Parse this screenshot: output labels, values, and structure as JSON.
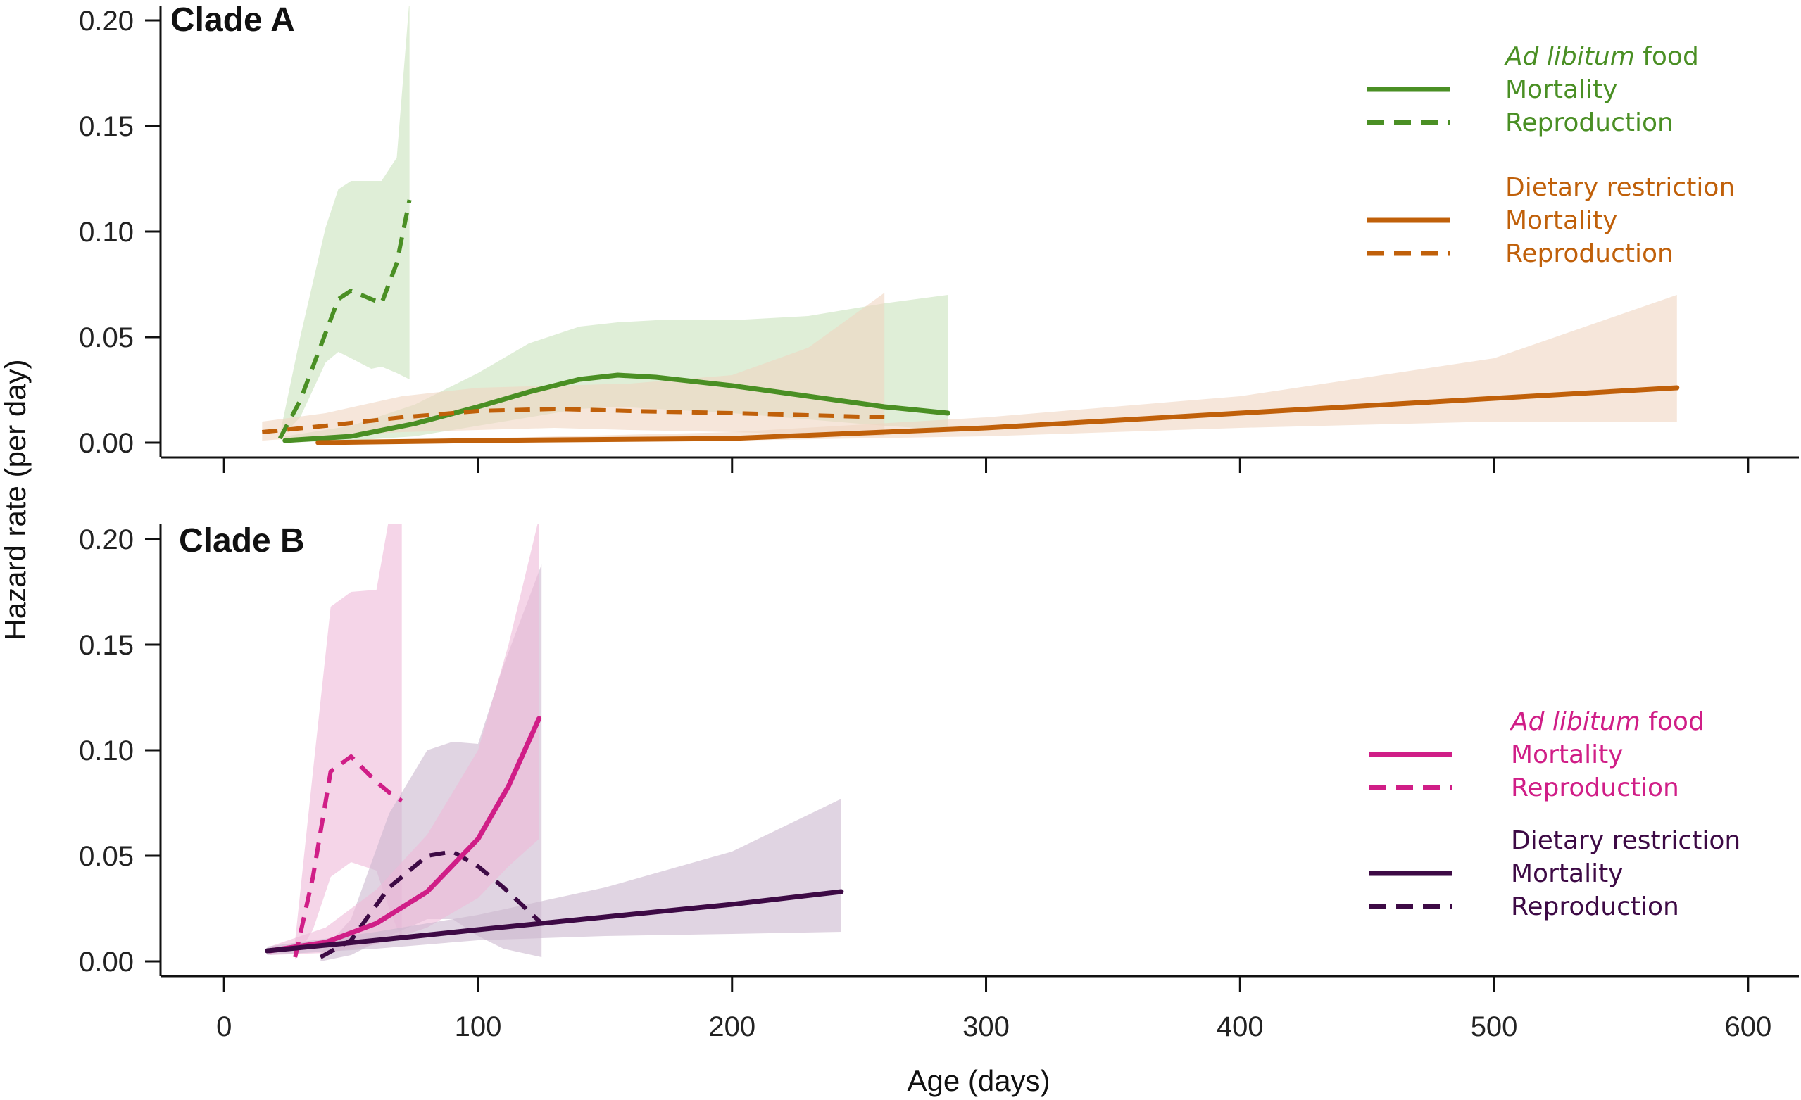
{
  "figure": {
    "ylabel": "Hazard rate (per day)",
    "xlabel": "Age (days)",
    "colors": {
      "A_adlib": "#4a8f24",
      "A_dr": "#c0600a",
      "B_adlib": "#d01e87",
      "B_dr": "#3d0a45",
      "A_adlib_band": "#c9e3bd",
      "A_dr_band": "#f0d6c2",
      "B_adlib_band": "#efb9d9",
      "B_dr_band": "#cbb7cf",
      "axis": "#111111"
    }
  },
  "chart_data": [
    {
      "type": "line",
      "panel": "A",
      "title": "Clade A",
      "xlabel": "Age (days)",
      "ylabel": "Hazard rate (per day)",
      "xlim": [
        -25,
        620
      ],
      "ylim": [
        -0.007,
        0.207
      ],
      "xticks": [
        0,
        100,
        200,
        300,
        400,
        500,
        600
      ],
      "xtick_labels": [
        "0",
        "100",
        "200",
        "300",
        "400",
        "500",
        "600"
      ],
      "yticks": [
        0.0,
        0.05,
        0.1,
        0.15,
        0.2
      ],
      "ytick_labels": [
        "0.00",
        "0.05",
        "0.10",
        "0.15",
        "0.20"
      ],
      "legend": {
        "position": "top-right",
        "groups": [
          {
            "italic": "Ad libitum",
            "heading": " food",
            "color": "A_adlib",
            "entries": [
              {
                "label": "Mortality",
                "style": "solid"
              },
              {
                "label": "Reproduction",
                "style": "dashed"
              }
            ]
          },
          {
            "italic": "",
            "heading": "Dietary restriction",
            "color": "A_dr",
            "entries": [
              {
                "label": "Mortality",
                "style": "solid"
              },
              {
                "label": "Reproduction",
                "style": "dashed"
              }
            ]
          }
        ]
      },
      "series": [
        {
          "name": "Ad libitum food - Reproduction",
          "color": "A_adlib",
          "band_color": "A_adlib_band",
          "style": "dashed",
          "x": [
            22,
            30,
            40,
            45,
            50,
            58,
            62,
            68,
            73
          ],
          "y": [
            0.002,
            0.02,
            0.052,
            0.068,
            0.072,
            0.068,
            0.066,
            0.085,
            0.115
          ],
          "lower": [
            0.002,
            0.012,
            0.038,
            0.043,
            0.04,
            0.035,
            0.036,
            0.033,
            0.03
          ],
          "upper": [
            0.004,
            0.05,
            0.102,
            0.12,
            0.124,
            0.124,
            0.124,
            0.135,
            0.21
          ]
        },
        {
          "name": "Ad libitum food - Mortality",
          "color": "A_adlib",
          "band_color": "A_adlib_band",
          "style": "solid",
          "x": [
            24,
            50,
            75,
            100,
            120,
            140,
            155,
            170,
            200,
            230,
            260,
            285
          ],
          "y": [
            0.001,
            0.003,
            0.009,
            0.017,
            0.024,
            0.03,
            0.032,
            0.031,
            0.027,
            0.022,
            0.017,
            0.014
          ],
          "lower": [
            0.0,
            0.001,
            0.003,
            0.008,
            0.012,
            0.016,
            0.017,
            0.016,
            0.014,
            0.011,
            0.008,
            0.006
          ],
          "upper": [
            0.003,
            0.008,
            0.018,
            0.033,
            0.047,
            0.055,
            0.057,
            0.058,
            0.058,
            0.06,
            0.066,
            0.07
          ]
        },
        {
          "name": "Dietary restriction - Reproduction",
          "color": "A_dr",
          "band_color": "A_dr_band",
          "style": "dashed",
          "x": [
            15,
            40,
            70,
            100,
            130,
            160,
            200,
            230,
            260
          ],
          "y": [
            0.005,
            0.008,
            0.012,
            0.015,
            0.016,
            0.015,
            0.014,
            0.013,
            0.012
          ],
          "lower": [
            0.001,
            0.003,
            0.005,
            0.006,
            0.007,
            0.006,
            0.005,
            0.004,
            0.003
          ],
          "upper": [
            0.01,
            0.014,
            0.022,
            0.026,
            0.027,
            0.028,
            0.032,
            0.045,
            0.071
          ]
        },
        {
          "name": "Dietary restriction - Mortality",
          "color": "A_dr",
          "band_color": "A_dr_band",
          "style": "solid",
          "x": [
            37,
            100,
            200,
            300,
            400,
            500,
            572
          ],
          "y": [
            0.0,
            0.001,
            0.002,
            0.007,
            0.014,
            0.021,
            0.026
          ],
          "lower": [
            0.0,
            0.0,
            0.001,
            0.003,
            0.007,
            0.01,
            0.01
          ],
          "upper": [
            0.001,
            0.002,
            0.005,
            0.012,
            0.022,
            0.04,
            0.07
          ]
        }
      ]
    },
    {
      "type": "line",
      "panel": "B",
      "title": "Clade B",
      "xlabel": "Age (days)",
      "ylabel": "Hazard rate (per day)",
      "xlim": [
        -25,
        620
      ],
      "ylim": [
        -0.007,
        0.207
      ],
      "xticks": [
        0,
        100,
        200,
        300,
        400,
        500,
        600
      ],
      "xtick_labels": [
        "0",
        "100",
        "200",
        "300",
        "400",
        "500",
        "600"
      ],
      "yticks": [
        0.0,
        0.05,
        0.1,
        0.15,
        0.2
      ],
      "ytick_labels": [
        "0.00",
        "0.05",
        "0.10",
        "0.15",
        "0.20"
      ],
      "legend": {
        "position": "right",
        "groups": [
          {
            "italic": "Ad libitum",
            "heading": " food",
            "color": "B_adlib",
            "entries": [
              {
                "label": "Mortality",
                "style": "solid"
              },
              {
                "label": "Reproduction",
                "style": "dashed"
              }
            ]
          },
          {
            "italic": "",
            "heading": "Dietary restriction",
            "color": "B_dr",
            "entries": [
              {
                "label": "Mortality",
                "style": "solid"
              },
              {
                "label": "Reproduction",
                "style": "dashed"
              }
            ]
          }
        ]
      },
      "series": [
        {
          "name": "Ad libitum food - Reproduction",
          "color": "B_adlib",
          "band_color": "B_adlib_band",
          "style": "dashed",
          "x": [
            28,
            35,
            42,
            50,
            60,
            65,
            70
          ],
          "y": [
            0.002,
            0.04,
            0.09,
            0.097,
            0.085,
            0.08,
            0.076
          ],
          "lower": [
            0.001,
            0.015,
            0.04,
            0.047,
            0.043,
            0.025,
            0.01
          ],
          "upper": [
            0.01,
            0.09,
            0.168,
            0.175,
            0.176,
            0.21,
            0.21
          ]
        },
        {
          "name": "Dietary restriction - Reproduction",
          "color": "B_dr",
          "band_color": "B_dr_band",
          "style": "dashed",
          "x": [
            38,
            50,
            65,
            80,
            90,
            100,
            110,
            125
          ],
          "y": [
            0.002,
            0.01,
            0.035,
            0.05,
            0.052,
            0.045,
            0.035,
            0.018
          ],
          "lower": [
            0.0,
            0.003,
            0.012,
            0.02,
            0.02,
            0.012,
            0.006,
            0.002
          ],
          "upper": [
            0.004,
            0.02,
            0.07,
            0.1,
            0.104,
            0.103,
            0.14,
            0.188
          ]
        },
        {
          "name": "Ad libitum food - Mortality",
          "color": "B_adlib",
          "band_color": "B_adlib_band",
          "style": "solid",
          "x": [
            18,
            40,
            60,
            80,
            100,
            112,
            124
          ],
          "y": [
            0.005,
            0.009,
            0.018,
            0.033,
            0.058,
            0.083,
            0.115
          ],
          "lower": [
            0.003,
            0.004,
            0.008,
            0.016,
            0.03,
            0.045,
            0.058
          ],
          "upper": [
            0.007,
            0.016,
            0.034,
            0.06,
            0.1,
            0.15,
            0.21
          ]
        },
        {
          "name": "Dietary restriction - Mortality",
          "color": "B_dr",
          "band_color": "B_dr_band",
          "style": "solid",
          "x": [
            17,
            60,
            100,
            150,
            200,
            243
          ],
          "y": [
            0.005,
            0.01,
            0.015,
            0.021,
            0.027,
            0.033
          ],
          "lower": [
            0.003,
            0.006,
            0.01,
            0.012,
            0.013,
            0.014
          ],
          "upper": [
            0.007,
            0.014,
            0.022,
            0.035,
            0.052,
            0.077
          ]
        }
      ]
    }
  ]
}
